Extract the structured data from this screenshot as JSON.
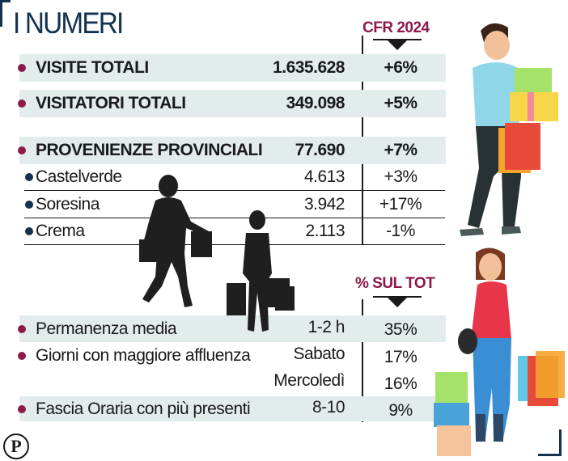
{
  "title": "I NUMERI",
  "headers": {
    "cfr": "CFR 2024",
    "sul_tot": "% SUL TOT"
  },
  "colors": {
    "accent": "#8b1a4a",
    "navy": "#12324f",
    "band": "#e3ecec"
  },
  "main_rows": [
    {
      "label": "VISITE TOTALI",
      "value": "1.635.628",
      "cfr": "+6%"
    },
    {
      "label": "VISITATORI TOTALI",
      "value": "349.098",
      "cfr": "+5%"
    },
    {
      "label": "PROVENIENZE PROVINCIALI",
      "value": "77.690",
      "cfr": "+7%"
    }
  ],
  "sub_rows": [
    {
      "label": "Castelverde",
      "value": "4.613",
      "cfr": "+3%"
    },
    {
      "label": "Soresina",
      "value": "3.942",
      "cfr": "+17%"
    },
    {
      "label": "Crema",
      "value": "2.113",
      "cfr": "-1%"
    }
  ],
  "stats": [
    {
      "label": "Permanenza media",
      "value": "1-2 h",
      "pct": "35%"
    },
    {
      "label": "Giorni con maggiore affluenza",
      "value": "Sabato",
      "pct": "17%"
    },
    {
      "label": "",
      "value": "Mercoledì",
      "pct": "16%"
    },
    {
      "label": "Fascia Oraria con più presenti",
      "value": "8-10",
      "pct": "9%"
    }
  ],
  "logo": "P",
  "icons": [
    "shopper-silhouette-icon",
    "child-silhouette-icon",
    "man-with-gifts-icon",
    "woman-with-bags-icon"
  ]
}
